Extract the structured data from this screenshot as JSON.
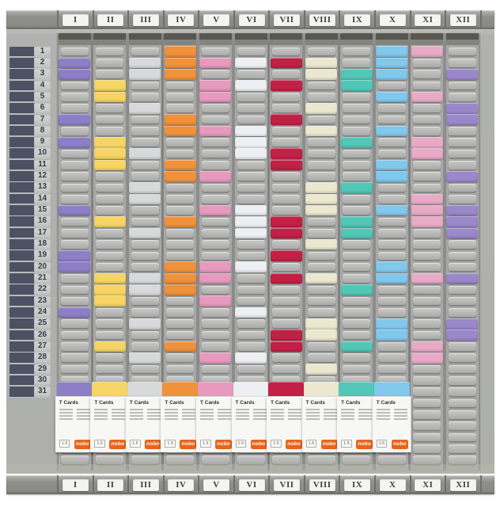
{
  "months": [
    "I",
    "II",
    "III",
    "IV",
    "V",
    "VI",
    "VII",
    "VIII",
    "IX",
    "X",
    "XI",
    "XII"
  ],
  "days": [
    "1",
    "2",
    "3",
    "4",
    "5",
    "6",
    "7",
    "8",
    "9",
    "10",
    "11",
    "12",
    "13",
    "14",
    "15",
    "16",
    "17",
    "18",
    "19",
    "20",
    "21",
    "22",
    "23",
    "24",
    "25",
    "26",
    "27",
    "28",
    "29",
    "30",
    "31"
  ],
  "columns": [
    {
      "label": "I",
      "card_color": "#8d7fc7",
      "card_rows": [
        2,
        3,
        7,
        9,
        15,
        19,
        20,
        24,
        31
      ],
      "has_box": true
    },
    {
      "label": "II",
      "card_color": "#f6d565",
      "card_rows": [
        4,
        5,
        9,
        10,
        11,
        16,
        21,
        22,
        23,
        27,
        31
      ],
      "has_box": true
    },
    {
      "label": "III",
      "card_color": "#d7d9db",
      "card_rows": [
        2,
        3,
        6,
        10,
        13,
        14,
        17,
        21,
        22,
        25,
        28,
        31
      ],
      "has_box": true
    },
    {
      "label": "IV",
      "card_color": "#f0913c",
      "card_rows": [
        1,
        2,
        3,
        7,
        8,
        11,
        12,
        16,
        20,
        21,
        22,
        27,
        31
      ],
      "has_box": true
    },
    {
      "label": "V",
      "card_color": "#e79abd",
      "card_rows": [
        2,
        4,
        5,
        8,
        12,
        15,
        20,
        21,
        23,
        28,
        31
      ],
      "has_box": true
    },
    {
      "label": "VI",
      "card_color": "#edeff3",
      "card_rows": [
        2,
        4,
        8,
        9,
        10,
        15,
        16,
        17,
        20,
        24,
        28,
        31
      ],
      "has_box": true
    },
    {
      "label": "VII",
      "card_color": "#c32045",
      "card_rows": [
        2,
        4,
        7,
        10,
        11,
        16,
        17,
        19,
        21,
        26,
        27,
        31
      ],
      "has_box": true
    },
    {
      "label": "VIII",
      "card_color": "#ebe8cf",
      "card_rows": [
        2,
        3,
        6,
        8,
        13,
        14,
        15,
        18,
        21,
        25,
        26,
        29,
        31
      ],
      "has_box": true
    },
    {
      "label": "IX",
      "card_color": "#52c7b8",
      "card_rows": [
        3,
        4,
        9,
        13,
        16,
        17,
        22,
        27,
        31
      ],
      "has_box": true
    },
    {
      "label": "X",
      "card_color": "#80c8ec",
      "card_rows": [
        1,
        2,
        3,
        5,
        8,
        11,
        12,
        15,
        20,
        21,
        25,
        26,
        31
      ],
      "has_box": true
    },
    {
      "label": "XI",
      "card_color": "#e9aac7",
      "card_rows": [
        1,
        5,
        9,
        10,
        14,
        15,
        16,
        21,
        27,
        28
      ],
      "has_box": false
    },
    {
      "label": "XII",
      "card_color": "#9b88cb",
      "card_rows": [
        3,
        6,
        7,
        12,
        15,
        16,
        17,
        21,
        25,
        26
      ],
      "has_box": false
    }
  ],
  "card_box": {
    "title": "T Cards",
    "size_label": "1.5",
    "brand": "nobo"
  },
  "colors": {
    "surface": "#b1b2b0",
    "column_panel": "#a8a9a7",
    "strip": "#8e8f8b",
    "strip_label_bg": "#f4f5f3",
    "day_bar": "#4c5263",
    "day_tab": "#c7c9c7",
    "box_face": "#f7f7f5",
    "nobo_orange": "#e8641b"
  }
}
